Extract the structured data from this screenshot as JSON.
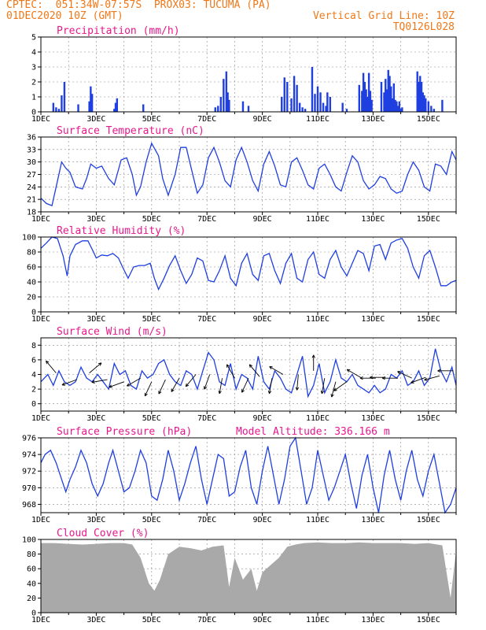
{
  "header": {
    "line1": "CPTEC:  051:34W-07:57S  PROX03: TUCUMA (PA)",
    "line2": "01DEC2020 10Z (GMT)",
    "grid_note": "Vertical Grid Line: 10Z",
    "run_code": "TQ0126L028"
  },
  "colors": {
    "header": "#f07818",
    "panel_title": "#e8188c",
    "series": "#1f3fe0",
    "cloud": "#a9a9a9",
    "axis": "#000000",
    "grid": "#888888"
  },
  "chart_data": [
    {
      "id": "precip",
      "type": "bar",
      "title": "Precipitation (mm/h)",
      "ylim": [
        0,
        5
      ],
      "yticks": [
        0,
        1,
        2,
        3,
        4,
        5
      ],
      "xlim": [
        0,
        15
      ],
      "xlabel_dates": [
        "1DEC",
        "3DEC",
        "5DEC",
        "7DEC",
        "9DEC",
        "11DEC",
        "13DEC",
        "15DEC"
      ],
      "x": [
        0.45,
        0.55,
        0.65,
        0.75,
        0.85,
        1.35,
        1.75,
        1.8,
        1.85,
        2.65,
        2.7,
        2.75,
        3.7,
        6.3,
        6.4,
        6.5,
        6.6,
        6.7,
        6.75,
        6.8,
        7.3,
        7.5,
        8.7,
        8.8,
        8.9,
        9.05,
        9.15,
        9.25,
        9.35,
        9.45,
        9.55,
        9.8,
        9.9,
        10.0,
        10.1,
        10.2,
        10.3,
        10.35,
        10.45,
        10.9,
        11.05,
        11.5,
        11.6,
        11.65,
        11.7,
        11.75,
        11.8,
        11.85,
        11.9,
        11.95,
        12.3,
        12.4,
        12.45,
        12.5,
        12.55,
        12.6,
        12.65,
        12.7,
        12.75,
        12.8,
        12.85,
        12.9,
        12.95,
        13.0,
        13.05,
        13.6,
        13.65,
        13.7,
        13.75,
        13.8,
        13.85,
        13.9,
        14.0,
        14.1,
        14.2,
        14.5
      ],
      "values": [
        0.6,
        0.3,
        0.2,
        1.1,
        2.0,
        0.5,
        0.7,
        1.7,
        1.2,
        0.2,
        0.6,
        0.9,
        0.5,
        0.3,
        0.4,
        1.0,
        2.2,
        2.7,
        1.3,
        0.8,
        0.7,
        0.4,
        1.0,
        2.3,
        2.0,
        0.9,
        2.4,
        1.8,
        0.6,
        0.3,
        0.2,
        3.0,
        1.2,
        1.7,
        1.3,
        0.6,
        0.4,
        1.3,
        1.0,
        0.6,
        0.2,
        1.8,
        1.4,
        2.6,
        2.0,
        1.5,
        1.0,
        2.6,
        1.4,
        0.8,
        2.0,
        1.3,
        2.2,
        1.5,
        2.8,
        2.4,
        1.7,
        0.9,
        1.9,
        0.8,
        0.7,
        0.4,
        0.7,
        0.2,
        0.3,
        2.7,
        2.0,
        2.4,
        2.0,
        1.3,
        1.1,
        0.9,
        0.7,
        0.4,
        0.2,
        0.8
      ]
    },
    {
      "id": "temperature",
      "type": "line",
      "title": "Surface Temperature (nC)",
      "ylim": [
        18,
        36
      ],
      "yticks": [
        18,
        21,
        24,
        27,
        30,
        33,
        36
      ],
      "xlim": [
        0,
        15
      ],
      "xlabel_dates": [
        "1DEC",
        "3DEC",
        "5DEC",
        "7DEC",
        "9DEC",
        "11DEC",
        "13DEC",
        "15DEC"
      ],
      "x": [
        0,
        0.2,
        0.4,
        0.55,
        0.75,
        0.9,
        1.05,
        1.25,
        1.5,
        1.65,
        1.8,
        2.0,
        2.2,
        2.45,
        2.65,
        2.9,
        3.1,
        3.3,
        3.45,
        3.6,
        3.8,
        4.0,
        4.25,
        4.4,
        4.6,
        4.85,
        5.05,
        5.25,
        5.45,
        5.65,
        5.85,
        6.05,
        6.25,
        6.45,
        6.65,
        6.85,
        7.05,
        7.25,
        7.45,
        7.65,
        7.85,
        8.05,
        8.25,
        8.45,
        8.65,
        8.85,
        9.05,
        9.25,
        9.45,
        9.65,
        9.85,
        10.05,
        10.25,
        10.45,
        10.65,
        10.85,
        11.05,
        11.25,
        11.45,
        11.65,
        11.85,
        12.05,
        12.25,
        12.45,
        12.65,
        12.85,
        13.05,
        13.25,
        13.45,
        13.65,
        13.85,
        14.05,
        14.25,
        14.45,
        14.65,
        14.85,
        15.0
      ],
      "values": [
        21.3,
        20.0,
        19.5,
        24.0,
        30.0,
        28.5,
        27.5,
        24.0,
        23.5,
        26.0,
        29.5,
        28.5,
        29.0,
        26.0,
        24.5,
        30.5,
        31.0,
        27.0,
        22.0,
        24.0,
        30.0,
        34.5,
        31.5,
        26.0,
        22.0,
        27.0,
        33.5,
        33.5,
        28.0,
        22.5,
        24.5,
        31.0,
        33.5,
        30.0,
        25.5,
        24.0,
        30.5,
        33.5,
        30.0,
        25.5,
        23.0,
        29.5,
        32.5,
        29.0,
        24.5,
        24.0,
        30.0,
        31.0,
        28.0,
        24.5,
        23.5,
        28.5,
        29.5,
        27.0,
        24.0,
        23.0,
        27.5,
        31.5,
        30.0,
        25.5,
        23.5,
        24.5,
        26.5,
        26.0,
        23.5,
        22.5,
        23.0,
        27.0,
        30.0,
        28.0,
        24.0,
        23.0,
        29.5,
        29.0,
        27.0,
        32.5,
        30.5
      ]
    },
    {
      "id": "humidity",
      "type": "line",
      "title": "Relative Humidity (%)",
      "ylim": [
        0,
        100
      ],
      "yticks": [
        0,
        20,
        40,
        60,
        80,
        100
      ],
      "xlim": [
        0,
        15
      ],
      "xlabel_dates": [
        "1DEC",
        "3DEC",
        "5DEC",
        "7DEC",
        "9DEC",
        "11DEC",
        "13DEC",
        "15DEC"
      ],
      "x": [
        0,
        0.2,
        0.4,
        0.6,
        0.8,
        0.95,
        1.05,
        1.25,
        1.5,
        1.7,
        1.9,
        2.0,
        2.2,
        2.4,
        2.6,
        2.8,
        2.95,
        3.15,
        3.35,
        3.55,
        3.75,
        3.95,
        4.1,
        4.25,
        4.45,
        4.65,
        4.85,
        5.05,
        5.25,
        5.45,
        5.65,
        5.85,
        6.05,
        6.25,
        6.45,
        6.65,
        6.85,
        7.05,
        7.25,
        7.45,
        7.65,
        7.85,
        8.05,
        8.25,
        8.45,
        8.65,
        8.85,
        9.05,
        9.25,
        9.45,
        9.65,
        9.85,
        10.05,
        10.25,
        10.45,
        10.65,
        10.85,
        11.05,
        11.25,
        11.45,
        11.65,
        11.85,
        12.05,
        12.25,
        12.45,
        12.65,
        12.85,
        13.05,
        13.25,
        13.45,
        13.65,
        13.85,
        14.05,
        14.25,
        14.45,
        14.65,
        14.85,
        15.0
      ],
      "values": [
        85,
        92,
        100,
        98,
        75,
        48,
        75,
        90,
        95,
        95,
        80,
        72,
        76,
        75,
        78,
        72,
        60,
        45,
        60,
        62,
        62,
        65,
        45,
        30,
        45,
        62,
        75,
        55,
        38,
        50,
        72,
        68,
        42,
        40,
        55,
        75,
        45,
        35,
        65,
        78,
        50,
        42,
        75,
        78,
        55,
        38,
        65,
        78,
        45,
        40,
        70,
        80,
        50,
        45,
        70,
        82,
        60,
        48,
        65,
        82,
        78,
        55,
        88,
        90,
        70,
        92,
        96,
        98,
        85,
        60,
        45,
        75,
        82,
        60,
        35,
        35,
        40,
        42
      ]
    },
    {
      "id": "wind",
      "type": "line",
      "title": "Surface Wind (m/s)",
      "ylim": [
        -1,
        9
      ],
      "yticks": [
        0,
        2,
        4,
        6,
        8
      ],
      "xlim": [
        0,
        15
      ],
      "xlabel_dates": [
        "1DEC",
        "3DEC",
        "5DEC",
        "7DEC",
        "9DEC",
        "11DEC",
        "13DEC",
        "15DEC"
      ],
      "x": [
        0,
        0.25,
        0.45,
        0.65,
        0.85,
        1.05,
        1.25,
        1.45,
        1.65,
        1.85,
        2.05,
        2.25,
        2.45,
        2.65,
        2.85,
        3.05,
        3.25,
        3.45,
        3.65,
        3.85,
        4.05,
        4.25,
        4.45,
        4.65,
        4.85,
        5.05,
        5.25,
        5.45,
        5.65,
        5.85,
        6.05,
        6.25,
        6.45,
        6.65,
        6.85,
        7.05,
        7.25,
        7.45,
        7.65,
        7.85,
        8.05,
        8.25,
        8.45,
        8.65,
        8.85,
        9.05,
        9.25,
        9.45,
        9.65,
        9.85,
        10.05,
        10.25,
        10.45,
        10.65,
        10.85,
        11.05,
        11.25,
        11.45,
        11.65,
        11.85,
        12.05,
        12.25,
        12.45,
        12.65,
        12.85,
        13.05,
        13.25,
        13.45,
        13.65,
        13.85,
        14.05,
        14.25,
        14.45,
        14.65,
        14.85,
        15.0
      ],
      "values": [
        3.0,
        4.0,
        2.5,
        4.5,
        3.0,
        2.5,
        3.0,
        5.0,
        3.5,
        3.0,
        4.0,
        3.0,
        2.0,
        5.5,
        4.0,
        4.5,
        2.5,
        2.0,
        4.5,
        3.5,
        4.0,
        5.5,
        6.0,
        4.0,
        3.0,
        2.5,
        4.5,
        4.0,
        2.0,
        4.5,
        7.0,
        6.0,
        3.0,
        2.5,
        5.5,
        2.0,
        4.0,
        3.5,
        2.0,
        6.5,
        3.0,
        2.0,
        4.5,
        3.5,
        2.0,
        1.5,
        4.0,
        6.5,
        1.0,
        2.5,
        5.5,
        1.5,
        3.0,
        6.0,
        3.5,
        3.0,
        4.0,
        2.5,
        2.0,
        1.5,
        2.5,
        1.5,
        2.0,
        4.0,
        3.5,
        4.5,
        2.5,
        3.0,
        4.5,
        2.5,
        3.5,
        7.5,
        4.5,
        3.0,
        5.0,
        2.5
      ],
      "vectors": [
        {
          "x": 0.55,
          "y": 4.2,
          "angle": -130
        },
        {
          "x": 1.3,
          "y": 3.3,
          "angle": 160
        },
        {
          "x": 1.75,
          "y": 4.2,
          "angle": -40
        },
        {
          "x": 2.4,
          "y": 3.3,
          "angle": 170
        },
        {
          "x": 3.0,
          "y": 3.0,
          "angle": 160
        },
        {
          "x": 3.6,
          "y": 3.5,
          "angle": 150
        },
        {
          "x": 4.0,
          "y": 3.0,
          "angle": 115
        },
        {
          "x": 4.5,
          "y": 3.3,
          "angle": 115
        },
        {
          "x": 5.0,
          "y": 3.5,
          "angle": 120
        },
        {
          "x": 5.6,
          "y": 4.0,
          "angle": 130
        },
        {
          "x": 6.1,
          "y": 4.0,
          "angle": 110
        },
        {
          "x": 6.55,
          "y": 3.5,
          "angle": 100
        },
        {
          "x": 7.0,
          "y": 3.5,
          "angle": -120
        },
        {
          "x": 7.5,
          "y": 3.5,
          "angle": 115
        },
        {
          "x": 7.9,
          "y": 3.7,
          "angle": -130
        },
        {
          "x": 8.35,
          "y": 3.5,
          "angle": 100
        },
        {
          "x": 8.75,
          "y": 4.0,
          "angle": -150
        },
        {
          "x": 9.3,
          "y": 4.0,
          "angle": 95
        },
        {
          "x": 9.85,
          "y": 4.5,
          "angle": -90
        },
        {
          "x": 10.25,
          "y": 3.5,
          "angle": 100
        },
        {
          "x": 10.65,
          "y": 3.0,
          "angle": 105
        },
        {
          "x": 11.05,
          "y": 3.0,
          "angle": 145
        },
        {
          "x": 11.55,
          "y": 3.6,
          "angle": -150
        },
        {
          "x": 12.1,
          "y": 3.5,
          "angle": 180
        },
        {
          "x": 12.45,
          "y": 3.6,
          "angle": 180
        },
        {
          "x": 12.9,
          "y": 3.5,
          "angle": 180
        },
        {
          "x": 13.4,
          "y": 3.5,
          "angle": -155
        },
        {
          "x": 13.9,
          "y": 3.6,
          "angle": 160
        },
        {
          "x": 14.4,
          "y": 3.8,
          "angle": 165
        },
        {
          "x": 14.9,
          "y": 4.5,
          "angle": 180
        }
      ]
    },
    {
      "id": "pressure",
      "type": "line",
      "title": "Surface Pressure (hPa)",
      "note": "Model Altitude: 336.166 m",
      "ylim": [
        967,
        976
      ],
      "yticks": [
        968,
        970,
        972,
        974,
        976
      ],
      "xlim": [
        0,
        15
      ],
      "xlabel_dates": [
        "1DEC",
        "3DEC",
        "5DEC",
        "7DEC",
        "9DEC",
        "11DEC",
        "13DEC",
        "15DEC"
      ],
      "x": [
        0,
        0.15,
        0.35,
        0.55,
        0.75,
        0.9,
        1.05,
        1.25,
        1.45,
        1.65,
        1.85,
        2.05,
        2.25,
        2.45,
        2.6,
        2.8,
        3.0,
        3.2,
        3.4,
        3.6,
        3.8,
        4.0,
        4.2,
        4.4,
        4.6,
        4.8,
        5.0,
        5.2,
        5.4,
        5.6,
        5.8,
        6.0,
        6.2,
        6.4,
        6.6,
        6.8,
        7.0,
        7.2,
        7.4,
        7.6,
        7.8,
        8.0,
        8.2,
        8.4,
        8.6,
        8.8,
        9.0,
        9.2,
        9.4,
        9.6,
        9.8,
        10.0,
        10.2,
        10.4,
        10.6,
        10.8,
        11.0,
        11.2,
        11.4,
        11.6,
        11.8,
        12.0,
        12.2,
        12.4,
        12.6,
        12.8,
        13.0,
        13.2,
        13.4,
        13.6,
        13.8,
        14.0,
        14.2,
        14.4,
        14.6,
        14.8,
        15.0
      ],
      "values": [
        973.0,
        974.0,
        974.5,
        973.0,
        971.0,
        969.5,
        971.0,
        972.5,
        974.5,
        973.0,
        970.5,
        969.0,
        970.5,
        973.0,
        974.5,
        972.0,
        969.5,
        970.0,
        972.0,
        974.5,
        973.0,
        969.0,
        968.5,
        971.0,
        974.5,
        972.0,
        968.5,
        970.5,
        973.0,
        975.0,
        971.0,
        968.0,
        971.0,
        974.0,
        973.5,
        969.0,
        969.5,
        972.5,
        974.5,
        970.0,
        968.0,
        972.0,
        975.0,
        971.5,
        968.0,
        971.0,
        975.0,
        976.0,
        972.0,
        968.0,
        970.0,
        974.5,
        971.5,
        968.5,
        970.0,
        972.0,
        974.0,
        970.5,
        967.5,
        971.5,
        974.0,
        970.0,
        967.0,
        971.5,
        974.5,
        971.0,
        968.5,
        972.0,
        974.5,
        971.0,
        969.0,
        972.0,
        974.0,
        970.5,
        967.0,
        968.0,
        970.0
      ]
    },
    {
      "id": "cloud",
      "type": "area",
      "title": "Cloud Cover (%)",
      "ylim": [
        0,
        100
      ],
      "yticks": [
        0,
        20,
        40,
        60,
        80,
        100
      ],
      "xlim": [
        0,
        15
      ],
      "xlabel_dates": [
        "1DEC",
        "3DEC",
        "5DEC",
        "7DEC",
        "9DEC",
        "11DEC",
        "13DEC",
        "15DEC"
      ],
      "x": [
        0,
        0.5,
        1.0,
        1.5,
        2.0,
        2.5,
        3.0,
        3.3,
        3.6,
        3.9,
        4.1,
        4.3,
        4.6,
        5.0,
        5.4,
        5.8,
        6.2,
        6.6,
        6.8,
        7.0,
        7.3,
        7.6,
        7.8,
        8.0,
        8.3,
        8.6,
        8.9,
        9.2,
        9.5,
        10.0,
        10.5,
        11.0,
        11.5,
        12.0,
        12.5,
        13.0,
        13.5,
        14.0,
        14.5,
        14.8,
        15.0
      ],
      "values": [
        95,
        95,
        94,
        93,
        94,
        95,
        95,
        93,
        75,
        40,
        30,
        45,
        80,
        90,
        88,
        85,
        90,
        92,
        35,
        75,
        45,
        60,
        30,
        55,
        65,
        75,
        90,
        93,
        95,
        96,
        95,
        95,
        96,
        95,
        95,
        95,
        94,
        95,
        92,
        20,
        85
      ]
    }
  ]
}
